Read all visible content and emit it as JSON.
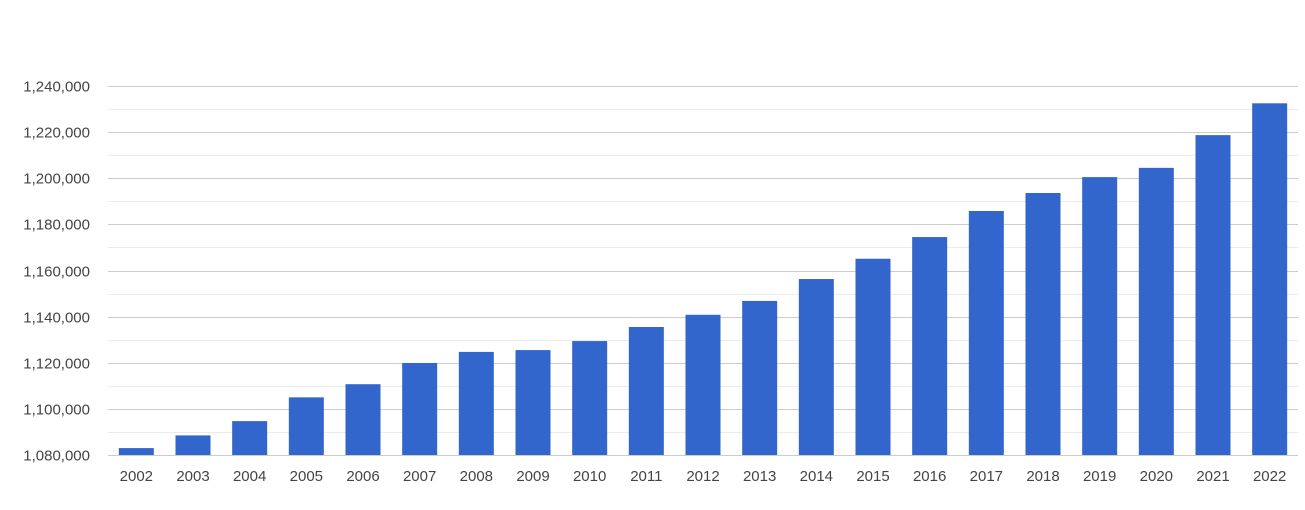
{
  "chart_data": {
    "type": "bar",
    "title": "",
    "xlabel": "",
    "ylabel": "",
    "categories": [
      "2002",
      "2003",
      "2004",
      "2005",
      "2006",
      "2007",
      "2008",
      "2009",
      "2010",
      "2011",
      "2012",
      "2013",
      "2014",
      "2015",
      "2016",
      "2017",
      "2018",
      "2019",
      "2020",
      "2021",
      "2022"
    ],
    "values": [
      1083000,
      1088500,
      1094700,
      1105000,
      1110700,
      1119900,
      1124700,
      1125500,
      1129400,
      1135500,
      1140800,
      1146800,
      1156300,
      1165100,
      1174500,
      1185800,
      1193600,
      1200500,
      1204500,
      1218700,
      1232500
    ],
    "ylim": [
      1080000,
      1240000
    ],
    "yticks": [
      1080000,
      1100000,
      1120000,
      1140000,
      1160000,
      1180000,
      1200000,
      1220000,
      1240000
    ],
    "ytick_labels": [
      "1,080,000",
      "1,100,000",
      "1,120,000",
      "1,140,000",
      "1,160,000",
      "1,180,000",
      "1,200,000",
      "1,220,000",
      "1,240,000"
    ],
    "grid": true,
    "bar_color": "#3366cc"
  }
}
